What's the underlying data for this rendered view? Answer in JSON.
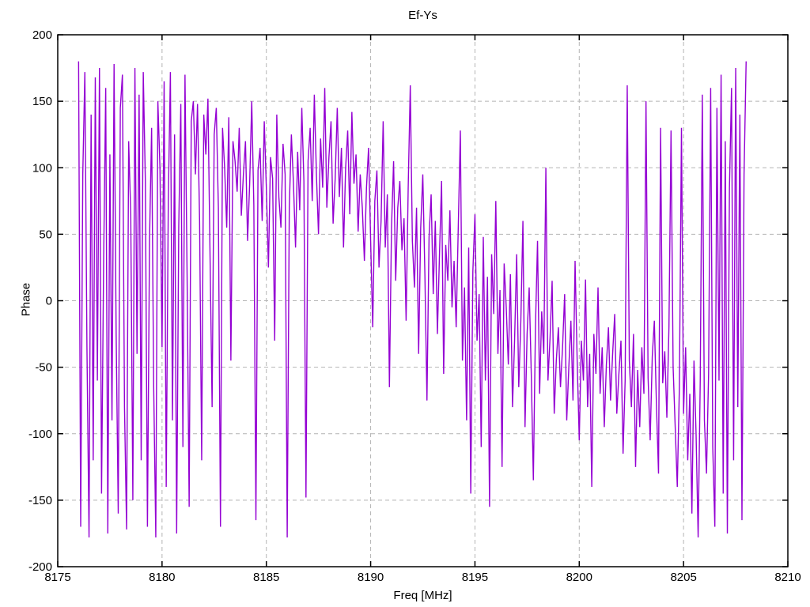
{
  "window": {
    "background": "#ffffff"
  },
  "chart_data": {
    "type": "line",
    "title": "Ef-Ys",
    "xlabel": "Freq [MHz]",
    "ylabel": "Phase",
    "xlim": [
      8175,
      8210
    ],
    "ylim": [
      -200,
      200
    ],
    "xticks": [
      8175,
      8180,
      8185,
      8190,
      8195,
      8200,
      8205,
      8210
    ],
    "yticks": [
      -200,
      -150,
      -100,
      -50,
      0,
      50,
      100,
      150,
      200
    ],
    "grid": "dashed",
    "legend": "none",
    "line_color": "#9400D3",
    "grid_color": "#b4b4b4",
    "axis_color": "#000000",
    "x_start": 8176.0,
    "x_step": 0.1,
    "values": [
      180,
      -170,
      95,
      172,
      -35,
      -178,
      140,
      -120,
      168,
      -60,
      175,
      -145,
      30,
      160,
      -175,
      110,
      -90,
      178,
      -25,
      -160,
      145,
      170,
      -80,
      -172,
      120,
      65,
      -150,
      175,
      -40,
      155,
      -120,
      172,
      90,
      -170,
      45,
      130,
      -65,
      -178,
      150,
      100,
      -35,
      165,
      -140,
      75,
      172,
      -90,
      125,
      -175,
      55,
      148,
      -110,
      170,
      20,
      -155,
      135,
      150,
      95,
      148,
      60,
      -120,
      140,
      110,
      152,
      35,
      -80,
      125,
      145,
      70,
      -170,
      130,
      100,
      55,
      138,
      -45,
      120,
      105,
      82,
      130,
      64,
      95,
      120,
      45,
      88,
      150,
      72,
      -165,
      98,
      115,
      60,
      135,
      85,
      25,
      108,
      92,
      -30,
      140,
      78,
      55,
      118,
      95,
      -178,
      70,
      125,
      88,
      40,
      112,
      68,
      145,
      90,
      -148,
      105,
      130,
      75,
      155,
      95,
      50,
      122,
      85,
      160,
      70,
      108,
      135,
      58,
      92,
      145,
      78,
      115,
      40,
      100,
      128,
      65,
      142,
      88,
      110,
      52,
      95,
      70,
      30,
      85,
      115,
      45,
      -20,
      75,
      98,
      25,
      60,
      135,
      40,
      80,
      -65,
      55,
      105,
      15,
      70,
      90,
      38,
      62,
      -15,
      85,
      162,
      45,
      10,
      70,
      -40,
      55,
      95,
      20,
      -75,
      48,
      80,
      5,
      60,
      -25,
      35,
      90,
      -55,
      42,
      15,
      68,
      -5,
      30,
      -20,
      55,
      128,
      -45,
      10,
      -90,
      40,
      -145,
      22,
      65,
      -30,
      5,
      -110,
      48,
      -60,
      18,
      -155,
      35,
      -10,
      75,
      -40,
      8,
      -125,
      28,
      -5,
      -48,
      20,
      -80,
      -30,
      35,
      -65,
      -15,
      60,
      -95,
      -25,
      10,
      -55,
      -135,
      -20,
      45,
      -70,
      -8,
      -40,
      100,
      -60,
      -28,
      15,
      -85,
      -45,
      -20,
      -65,
      -35,
      5,
      -90,
      -50,
      -15,
      -75,
      30,
      -45,
      -105,
      -30,
      -60,
      16,
      -80,
      -40,
      -140,
      -25,
      -55,
      10,
      -70,
      -35,
      -95,
      -48,
      -20,
      -75,
      -40,
      -10,
      -85,
      -55,
      -30,
      -115,
      -60,
      162,
      -45,
      -80,
      -25,
      -125,
      -52,
      -95,
      -35,
      -70,
      150,
      -58,
      -105,
      -42,
      -15,
      -78,
      -130,
      130,
      -62,
      -38,
      -88,
      -20,
      128,
      -50,
      -95,
      -140,
      -65,
      130,
      -85,
      -35,
      -120,
      -70,
      -160,
      -45,
      -100,
      -178,
      -60,
      155,
      -90,
      -130,
      -55,
      160,
      -110,
      -170,
      145,
      -60,
      170,
      -145,
      120,
      -175,
      85,
      160,
      -120,
      175,
      -80,
      140,
      -165,
      95,
      180
    ]
  }
}
